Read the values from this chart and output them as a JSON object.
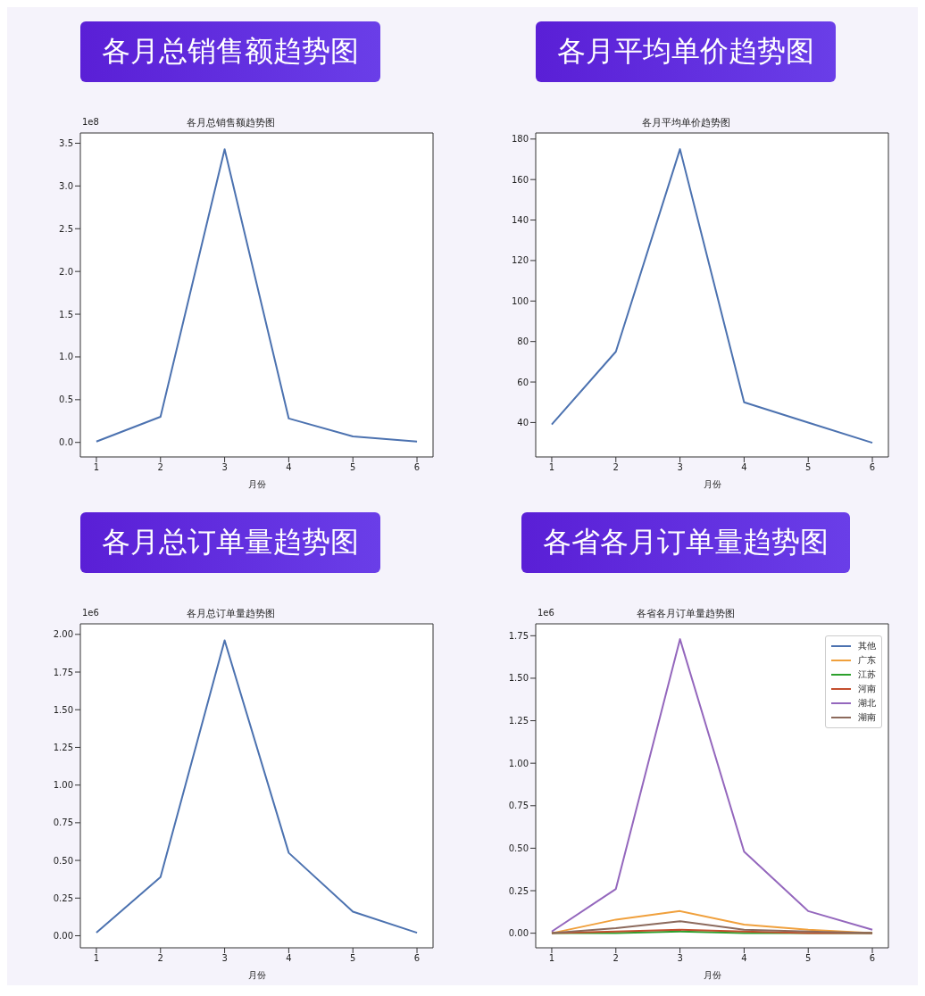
{
  "chart_data": [
    {
      "type": "line",
      "title": "各月总销售额趋势图",
      "subtitle": "各月总销售额趋势图",
      "xlabel": "月份",
      "annotations": [
        "1e8"
      ],
      "x": [
        1,
        2,
        3,
        4,
        5,
        6
      ],
      "xlim": [
        0.75,
        6.25
      ],
      "xticks": [
        1,
        2,
        3,
        4,
        5,
        6
      ],
      "ylim": [
        -0.17,
        3.62
      ],
      "yticks": [
        {
          "value": 0,
          "label": "0.0"
        },
        0.5,
        {
          "value": 1,
          "label": "1.0"
        },
        1.5,
        {
          "value": 2,
          "label": "2.0"
        },
        2.5,
        {
          "value": 3,
          "label": "3.0"
        },
        3.5
      ],
      "grid": false,
      "legend": false,
      "series": [
        {
          "color": "#4c72b0",
          "values": [
            0.01,
            0.3,
            3.43,
            0.28,
            0.07,
            0.01
          ]
        }
      ]
    },
    {
      "type": "line",
      "title": "各月平均单价趋势图",
      "subtitle": "各月平均单价趋势图",
      "xlabel": "月份",
      "x": [
        1,
        2,
        3,
        4,
        5,
        6
      ],
      "xlim": [
        0.75,
        6.25
      ],
      "xticks": [
        1,
        2,
        3,
        4,
        5,
        6
      ],
      "ylim": [
        23,
        183
      ],
      "yticks": [
        40,
        60,
        80,
        100,
        120,
        140,
        160,
        180
      ],
      "grid": false,
      "legend": false,
      "series": [
        {
          "color": "#4c72b0",
          "values": [
            39,
            75,
            175,
            50,
            40,
            30
          ]
        }
      ]
    },
    {
      "type": "line",
      "title": "各月总订单量趋势图",
      "subtitle": "各月总订单量趋势图",
      "xlabel": "月份",
      "annotations": [
        "1e6"
      ],
      "x": [
        1,
        2,
        3,
        4,
        5,
        6
      ],
      "xlim": [
        0.75,
        6.25
      ],
      "xticks": [
        1,
        2,
        3,
        4,
        5,
        6
      ],
      "ylim": [
        -0.08,
        2.07
      ],
      "yticks": [
        {
          "value": 0,
          "label": "0.00"
        },
        0.25,
        {
          "value": 0.5,
          "label": "0.50"
        },
        0.75,
        {
          "value": 1,
          "label": "1.00"
        },
        1.25,
        {
          "value": 1.5,
          "label": "1.50"
        },
        1.75,
        {
          "value": 2,
          "label": "2.00"
        }
      ],
      "grid": false,
      "legend": false,
      "series": [
        {
          "color": "#4c72b0",
          "values": [
            0.02,
            0.39,
            1.96,
            0.55,
            0.16,
            0.02
          ]
        }
      ]
    },
    {
      "type": "line",
      "title": "各省各月订单量趋势图",
      "subtitle": "各省各月订单量趋势图",
      "xlabel": "月份",
      "annotations": [
        "1e6"
      ],
      "x": [
        1,
        2,
        3,
        4,
        5,
        6
      ],
      "xlim": [
        0.75,
        6.25
      ],
      "xticks": [
        1,
        2,
        3,
        4,
        5,
        6
      ],
      "ylim": [
        -0.086,
        1.82
      ],
      "yticks": [
        {
          "value": 0,
          "label": "0.00"
        },
        0.25,
        {
          "value": 0.5,
          "label": "0.50"
        },
        0.75,
        {
          "value": 1,
          "label": "1.00"
        },
        1.25,
        {
          "value": 1.5,
          "label": "1.50"
        },
        1.75
      ],
      "grid": false,
      "legend": "top right",
      "series": [
        {
          "name": "其他",
          "color": "#4c72b0",
          "values": [
            null,
            null,
            null,
            null,
            null,
            null
          ]
        },
        {
          "name": "广东",
          "color": "#f0a03c",
          "values": [
            0,
            0.08,
            0.13,
            0.05,
            0.02,
            0
          ]
        },
        {
          "name": "江苏",
          "color": "#2ca02c",
          "values": [
            0,
            0,
            0.01,
            0,
            0,
            0
          ]
        },
        {
          "name": "河南",
          "color": "#c44e2e",
          "values": [
            0,
            0.01,
            0.02,
            0.01,
            0,
            0
          ]
        },
        {
          "name": "湖北",
          "color": "#9467bd",
          "values": [
            0.01,
            0.26,
            1.73,
            0.48,
            0.13,
            0.02
          ]
        },
        {
          "name": "湖南",
          "color": "#8c6a5c",
          "values": [
            0,
            0.03,
            0.07,
            0.02,
            0.01,
            0
          ]
        }
      ]
    }
  ]
}
